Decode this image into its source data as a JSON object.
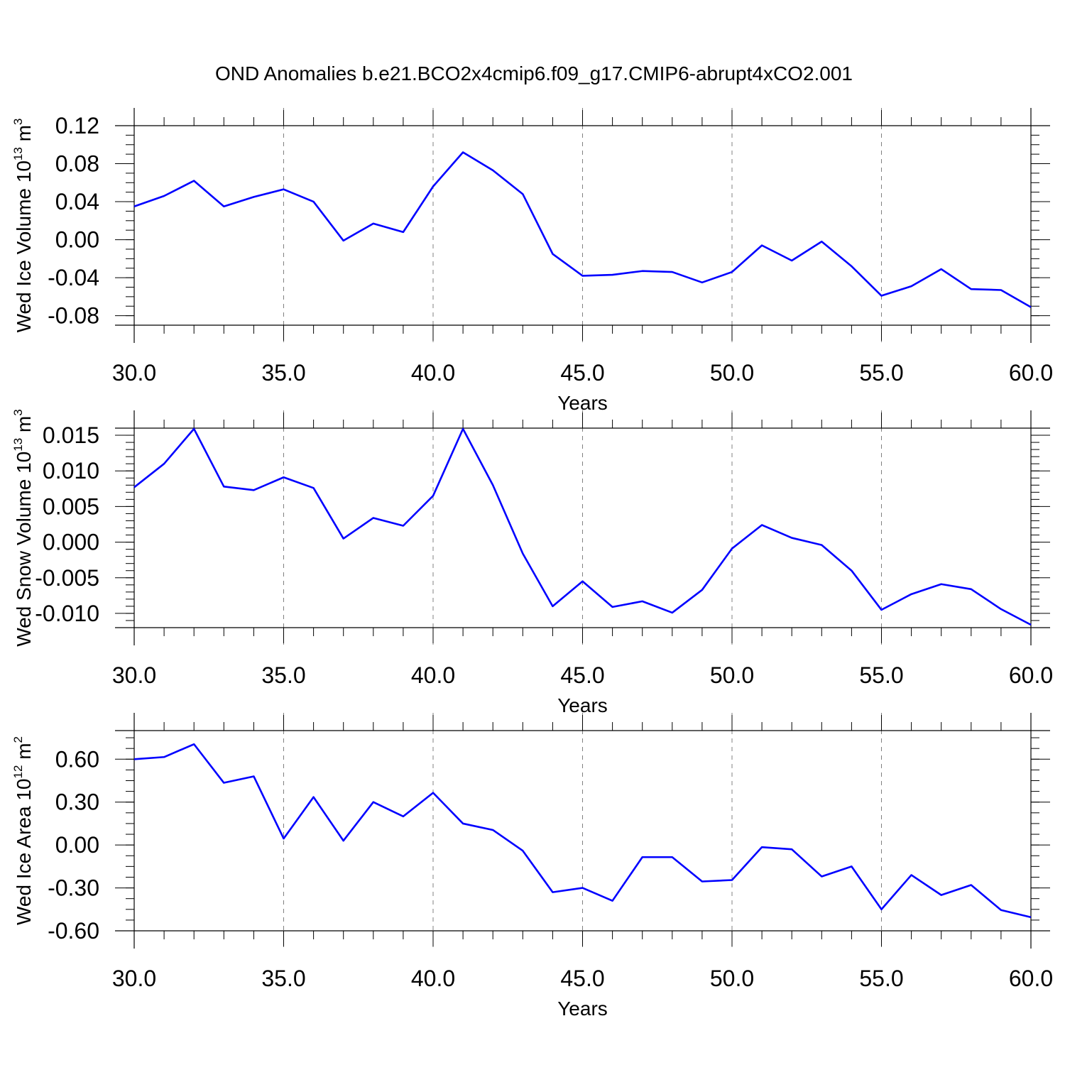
{
  "title": "OND Anomalies b.e21.BCO2x4cmip6.f09_g17.CMIP6-abrupt4xCO2.001",
  "colors": {
    "line": "#0000ff",
    "frame": "#000000",
    "grid": "#808080"
  },
  "chart_data": [
    {
      "type": "line",
      "ylabel": {
        "main": "Wed Ice Volume 10",
        "exp": "13",
        "unit_main": " m",
        "unit_exp": "3"
      },
      "xlabel": "Years",
      "xlim": [
        30,
        60
      ],
      "ylim": [
        -0.09,
        0.12
      ],
      "x_ticks": [
        "30.0",
        "35.0",
        "40.0",
        "45.0",
        "50.0",
        "55.0",
        "60.0"
      ],
      "y_ticks": [
        "0.12",
        "0.08",
        "0.04",
        "0.00",
        "-0.04",
        "-0.08"
      ],
      "x": [
        30,
        31,
        32,
        33,
        34,
        35,
        36,
        37,
        38,
        39,
        40,
        41,
        42,
        43,
        44,
        45,
        46,
        47,
        48,
        49,
        50,
        51,
        52,
        53,
        54,
        55,
        56,
        57,
        58,
        59,
        60
      ],
      "series": [
        {
          "values": [
            0.035,
            0.046,
            0.062,
            0.035,
            0.045,
            0.053,
            0.04,
            -0.001,
            0.017,
            0.008,
            0.056,
            0.092,
            0.073,
            0.048,
            -0.015,
            -0.038,
            -0.037,
            -0.033,
            -0.034,
            -0.045,
            -0.034,
            -0.006,
            -0.022,
            -0.002,
            -0.028,
            -0.059,
            -0.049,
            -0.031,
            -0.052,
            -0.053,
            -0.071
          ]
        }
      ]
    },
    {
      "type": "line",
      "ylabel": {
        "main": "Wed Snow Volume 10",
        "exp": "13",
        "unit_main": " m",
        "unit_exp": "3"
      },
      "xlabel": "Years",
      "xlim": [
        30,
        60
      ],
      "ylim": [
        -0.012,
        0.016
      ],
      "x_ticks": [
        "30.0",
        "35.0",
        "40.0",
        "45.0",
        "50.0",
        "55.0",
        "60.0"
      ],
      "y_ticks": [
        "0.015",
        "0.010",
        "0.005",
        "0.000",
        "-0.005",
        "-0.010"
      ],
      "x": [
        30,
        31,
        32,
        33,
        34,
        35,
        36,
        37,
        38,
        39,
        40,
        41,
        42,
        43,
        44,
        45,
        46,
        47,
        48,
        49,
        50,
        51,
        52,
        53,
        54,
        55,
        56,
        57,
        58,
        59,
        60
      ],
      "series": [
        {
          "values": [
            0.0077,
            0.011,
            0.0159,
            0.0078,
            0.0073,
            0.0091,
            0.0076,
            0.0005,
            0.0034,
            0.0023,
            0.0065,
            0.0159,
            0.008,
            -0.0016,
            -0.009,
            -0.0055,
            -0.0091,
            -0.0083,
            -0.0099,
            -0.0067,
            -0.0009,
            0.0024,
            0.0006,
            -0.0004,
            -0.004,
            -0.0095,
            -0.0073,
            -0.0059,
            -0.0066,
            -0.0094,
            -0.0116
          ]
        }
      ]
    },
    {
      "type": "line",
      "ylabel": {
        "main": "Wed Ice Area 10",
        "exp": "12",
        "unit_main": " m",
        "unit_exp": "2"
      },
      "xlabel": "Years",
      "xlim": [
        30,
        60
      ],
      "ylim": [
        -0.6,
        0.8
      ],
      "x_ticks": [
        "30.0",
        "35.0",
        "40.0",
        "45.0",
        "50.0",
        "55.0",
        "60.0"
      ],
      "y_ticks": [
        "0.60",
        "0.30",
        "0.00",
        "-0.30",
        "-0.60"
      ],
      "x": [
        30,
        31,
        32,
        33,
        34,
        35,
        36,
        37,
        38,
        39,
        40,
        41,
        42,
        43,
        44,
        45,
        46,
        47,
        48,
        49,
        50,
        51,
        52,
        53,
        54,
        55,
        56,
        57,
        58,
        59,
        60
      ],
      "series": [
        {
          "values": [
            0.6,
            0.615,
            0.705,
            0.435,
            0.48,
            0.045,
            0.335,
            0.03,
            0.3,
            0.2,
            0.365,
            0.15,
            0.105,
            -0.04,
            -0.33,
            -0.3,
            -0.39,
            -0.085,
            -0.085,
            -0.255,
            -0.245,
            -0.015,
            -0.03,
            -0.22,
            -0.15,
            -0.45,
            -0.21,
            -0.35,
            -0.28,
            -0.455,
            -0.505
          ]
        }
      ]
    }
  ]
}
